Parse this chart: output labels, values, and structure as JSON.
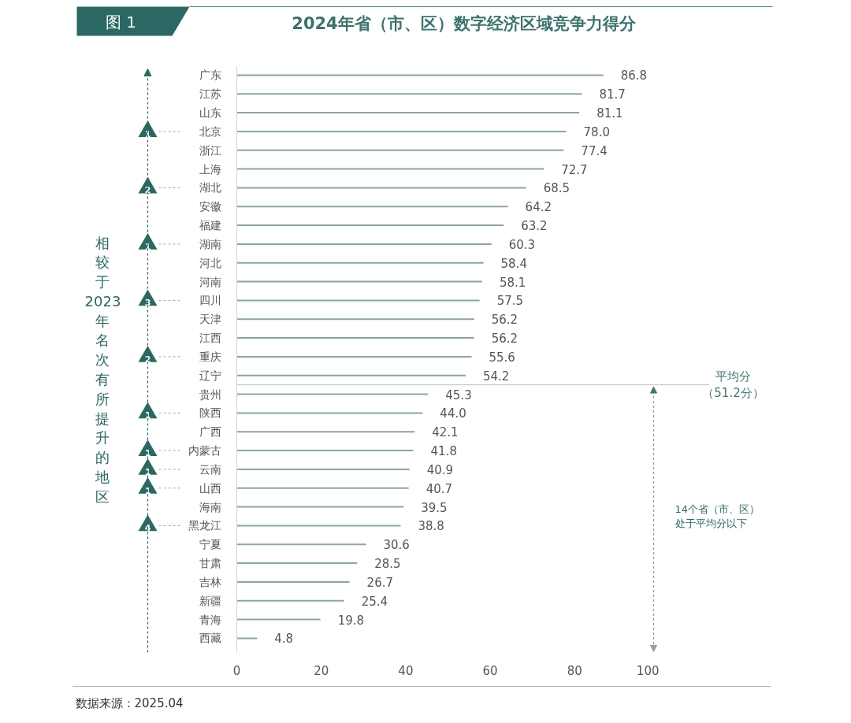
{
  "chart_data": {
    "type": "bar",
    "orientation": "horizontal",
    "title": "2024年省（市、区）数字经济区域竞争力得分",
    "categories": [
      "广东",
      "江苏",
      "山东",
      "北京",
      "浙江",
      "上海",
      "湖北",
      "安徽",
      "福建",
      "湖南",
      "河北",
      "河南",
      "四川",
      "天津",
      "江西",
      "重庆",
      "辽宁",
      "贵州",
      "陕西",
      "广西",
      "内蒙古",
      "云南",
      "山西",
      "海南",
      "黑龙江",
      "宁夏",
      "甘肃",
      "吉林",
      "新疆",
      "青海",
      "西藏"
    ],
    "values": [
      86.8,
      81.7,
      81.1,
      78.0,
      77.4,
      72.7,
      68.5,
      64.2,
      63.2,
      60.3,
      58.4,
      58.1,
      57.5,
      56.2,
      56.2,
      55.6,
      54.2,
      45.3,
      44.0,
      42.1,
      41.8,
      40.9,
      40.7,
      39.5,
      38.8,
      30.6,
      28.5,
      26.7,
      25.4,
      19.8,
      4.8
    ],
    "value_labels": [
      "86.8",
      "81.7",
      "81.1",
      "78.0",
      "77.4",
      "72.7",
      "68.5",
      "64.2",
      "63.2",
      "60.3",
      "58.4",
      "58.1",
      "57.5",
      "56.2",
      "56.2",
      "55.6",
      "54.2",
      "45.3",
      "44.0",
      "42.1",
      "41.8",
      "40.9",
      "40.7",
      "39.5",
      "38.8",
      "30.6",
      "28.5",
      "26.7",
      "25.4",
      "19.8",
      "4.8"
    ],
    "color": "#8aa6a3",
    "xlim": [
      0,
      100
    ],
    "xticks": [
      0,
      20,
      40,
      60,
      80,
      100
    ],
    "grid": false,
    "annotations": [
      "图 1",
      "相较于2023年名次有所提升的地区",
      "1",
      "2",
      "1",
      "3",
      "2",
      "1",
      "1",
      "1",
      "1",
      "4",
      "平均分（51.2分）",
      "14个省（市、区）处于平均分以下",
      "数据来源：2025.04"
    ]
  }
}
